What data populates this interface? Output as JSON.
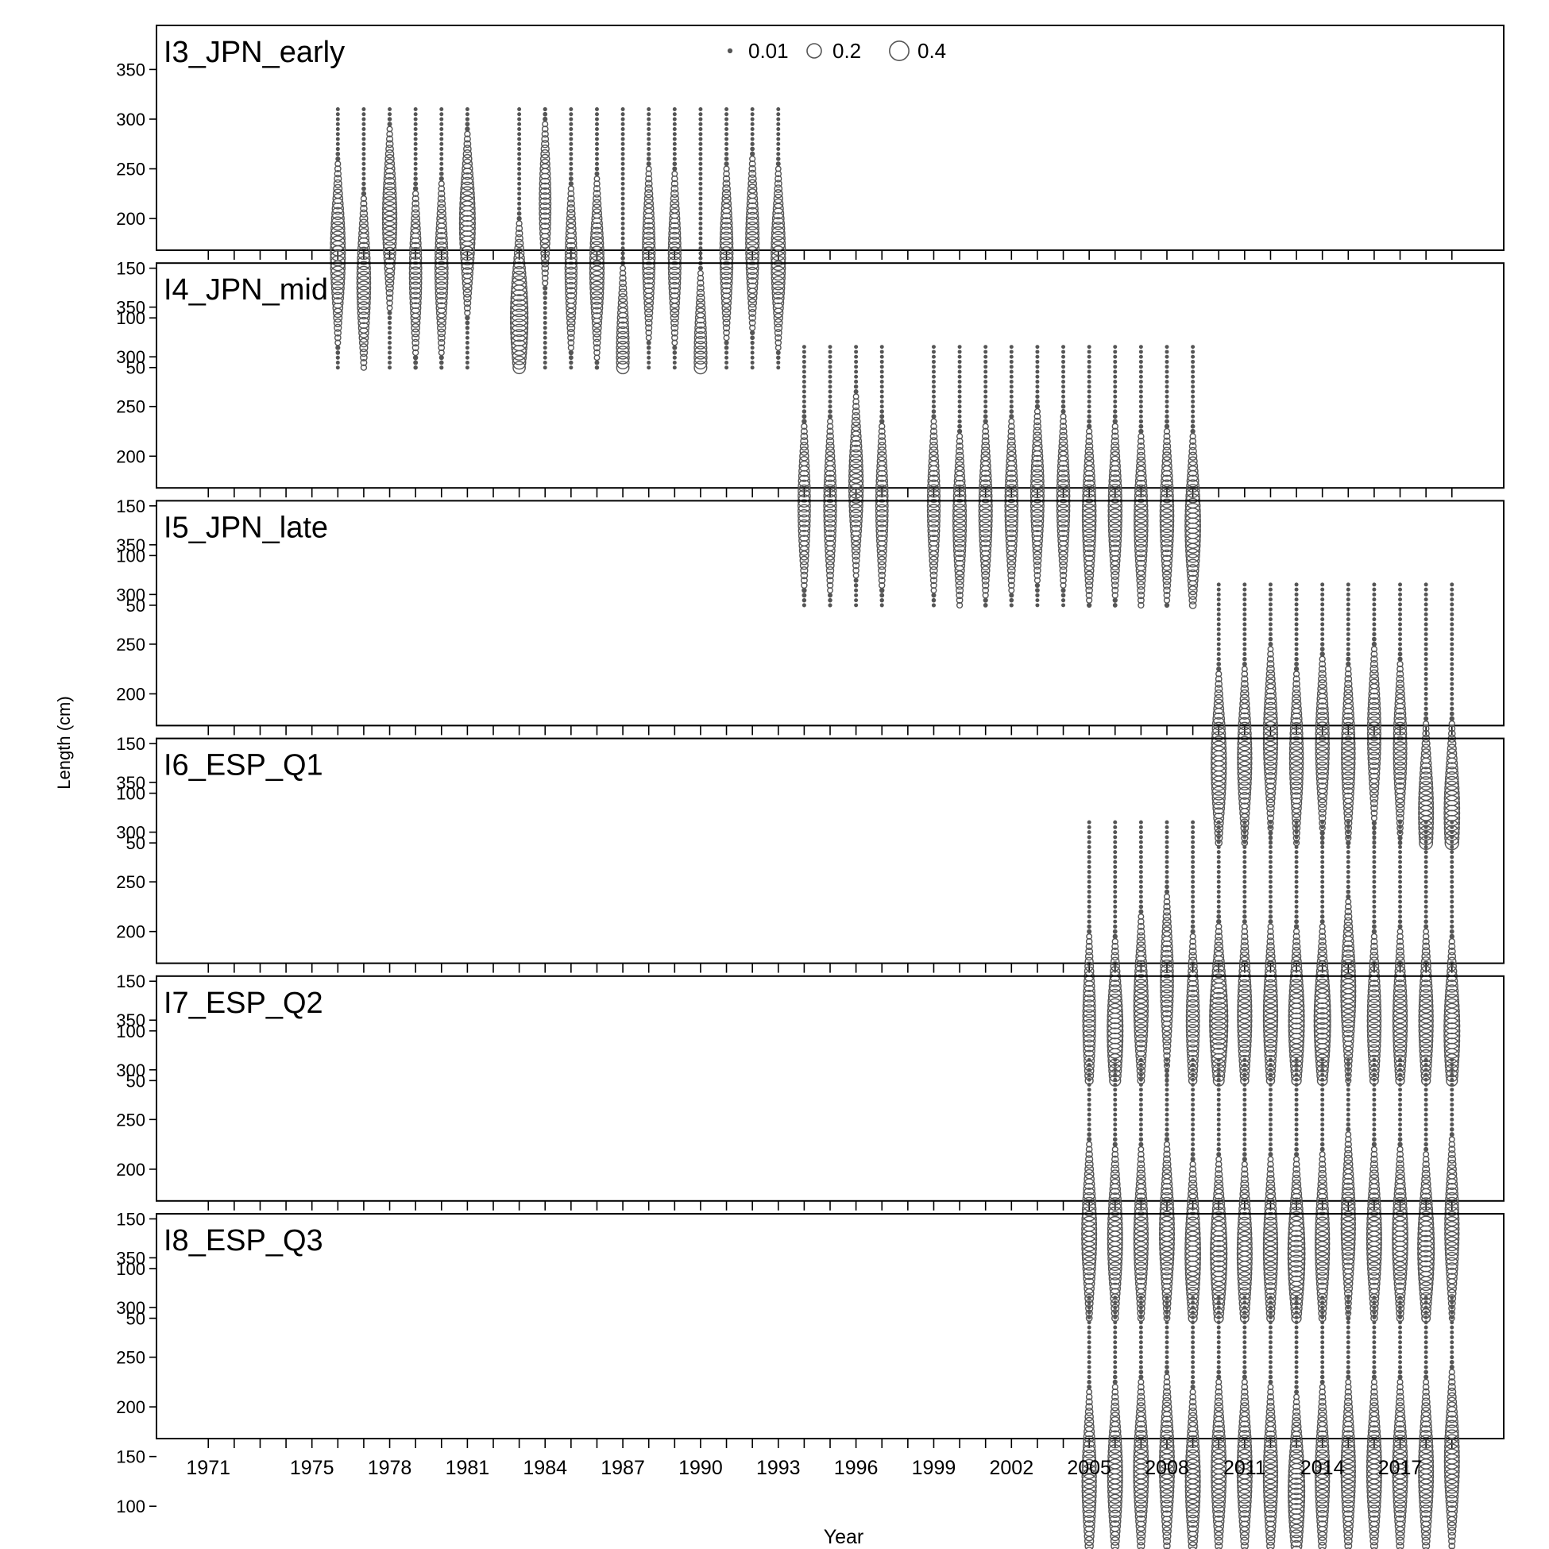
{
  "chart_data": {
    "type": "scatter",
    "subtype": "bubble",
    "xlabel": "Year",
    "ylabel": "Length (cm)",
    "x_tick_labels": [
      "1971",
      "1975",
      "1978",
      "1981",
      "1984",
      "1987",
      "1990",
      "1993",
      "1996",
      "1999",
      "2002",
      "2005",
      "2008",
      "2011",
      "2014",
      "2017"
    ],
    "xlim": [
      1969,
      2021
    ],
    "ylim": [
      45,
      390
    ],
    "y_ticks": [
      50,
      100,
      150,
      200,
      250,
      300,
      350
    ],
    "length_bins_cm": [
      50,
      310,
      5
    ],
    "legend": {
      "position": "top-center",
      "entries": [
        {
          "label": "0.01",
          "value": 0.01
        },
        {
          "label": "0.2",
          "value": 0.2
        },
        {
          "label": "0.4",
          "value": 0.4
        }
      ]
    },
    "panels": [
      {
        "name": "I3_JPN_early",
        "years": [
          1976,
          1977,
          1978,
          1979,
          1980,
          1981,
          1983,
          1984,
          1985,
          1986,
          1987,
          1988,
          1989,
          1990,
          1991,
          1992,
          1993
        ],
        "modes_cm": [
          165,
          135,
          200,
          145,
          150,
          195,
          100,
          215,
          150,
          150,
          65,
          165,
          160,
          60,
          165,
          175,
          160
        ],
        "peak_proportion": [
          0.22,
          0.18,
          0.2,
          0.14,
          0.16,
          0.25,
          0.32,
          0.12,
          0.13,
          0.2,
          0.15,
          0.15,
          0.15,
          0.15,
          0.16,
          0.17,
          0.2
        ]
      },
      {
        "name": "I4_JPN_mid",
        "years": [
          1994,
          1995,
          1996,
          1997,
          1999,
          2000,
          2001,
          2002,
          2003,
          2004,
          2005,
          2006,
          2007,
          2008,
          2009
        ],
        "modes_cm": [
          150,
          150,
          170,
          150,
          150,
          135,
          145,
          150,
          160,
          155,
          140,
          145,
          135,
          140,
          130
        ],
        "peak_proportion": [
          0.14,
          0.15,
          0.2,
          0.14,
          0.15,
          0.17,
          0.17,
          0.16,
          0.17,
          0.16,
          0.18,
          0.18,
          0.18,
          0.18,
          0.24
        ]
      },
      {
        "name": "I5_JPN_late",
        "years": [
          2010,
          2011,
          2012,
          2013,
          2014,
          2015,
          2016,
          2017,
          2018,
          2019
        ],
        "modes_cm": [
          130,
          135,
          155,
          135,
          150,
          140,
          160,
          145,
          80,
          80
        ],
        "peak_proportion": [
          0.23,
          0.2,
          0.2,
          0.18,
          0.18,
          0.18,
          0.17,
          0.17,
          0.22,
          0.24
        ]
      },
      {
        "name": "I6_ESP_Q1",
        "years": [
          2005,
          2006,
          2007,
          2008,
          2009,
          2010,
          2011,
          2012,
          2013,
          2014,
          2015,
          2016,
          2017,
          2018,
          2019
        ],
        "modes_cm": [
          110,
          100,
          125,
          150,
          110,
          110,
          115,
          115,
          110,
          110,
          140,
          110,
          110,
          110,
          100
        ],
        "peak_proportion": [
          0.15,
          0.25,
          0.2,
          0.16,
          0.16,
          0.35,
          0.2,
          0.2,
          0.25,
          0.28,
          0.22,
          0.18,
          0.2,
          0.2,
          0.25
        ]
      },
      {
        "name": "I7_ESP_Q2",
        "years": [
          2005,
          2006,
          2007,
          2008,
          2009,
          2010,
          2011,
          2012,
          2013,
          2014,
          2015,
          2016,
          2017,
          2018,
          2019
        ],
        "modes_cm": [
          135,
          130,
          130,
          135,
          115,
          115,
          115,
          120,
          115,
          125,
          145,
          130,
          130,
          120,
          140
        ],
        "peak_proportion": [
          0.22,
          0.22,
          0.2,
          0.22,
          0.24,
          0.28,
          0.22,
          0.2,
          0.3,
          0.2,
          0.2,
          0.22,
          0.24,
          0.28,
          0.2
        ]
      },
      {
        "name": "I8_ESP_Q3",
        "years": [
          2005,
          2006,
          2007,
          2008,
          2009,
          2010,
          2011,
          2012,
          2013,
          2014,
          2015,
          2016,
          2017,
          2018,
          2019
        ],
        "modes_cm": [
          125,
          130,
          135,
          140,
          125,
          135,
          135,
          130,
          115,
          130,
          135,
          135,
          135,
          135,
          145
        ],
        "peak_proportion": [
          0.2,
          0.22,
          0.22,
          0.22,
          0.22,
          0.22,
          0.22,
          0.2,
          0.28,
          0.2,
          0.2,
          0.22,
          0.22,
          0.22,
          0.22
        ]
      }
    ]
  }
}
